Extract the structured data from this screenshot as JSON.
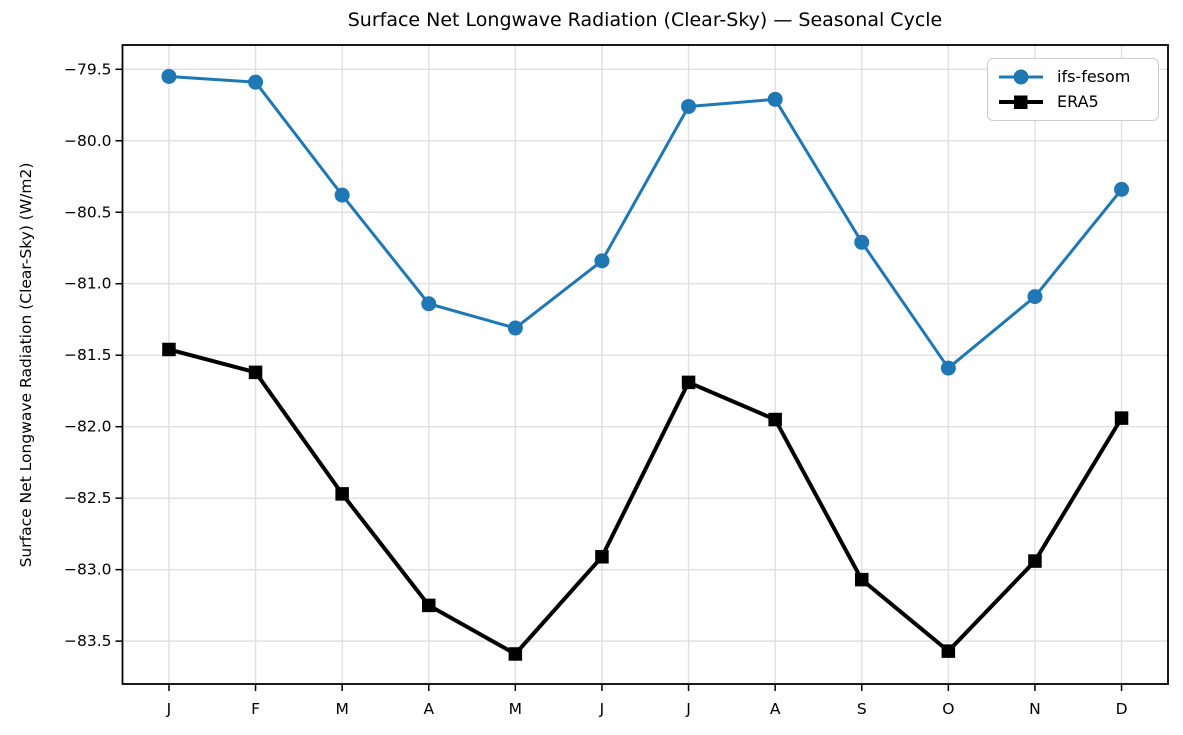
{
  "chart_data": {
    "type": "line",
    "title": "Surface Net Longwave Radiation (Clear-Sky) — Seasonal Cycle",
    "xlabel": "",
    "ylabel": "Surface Net Longwave Radiation (Clear-Sky) (W/m2)",
    "categories": [
      "J",
      "F",
      "M",
      "A",
      "M",
      "J",
      "J",
      "A",
      "S",
      "O",
      "N",
      "D"
    ],
    "series": [
      {
        "name": "ifs-fesom",
        "color": "#1f77b4",
        "marker": "circle",
        "linewidth": 3,
        "values": [
          -79.55,
          -79.59,
          -80.38,
          -81.14,
          -81.31,
          -80.84,
          -79.76,
          -79.71,
          -80.71,
          -81.59,
          -81.09,
          -80.34
        ]
      },
      {
        "name": "ERA5",
        "color": "#000000",
        "marker": "square",
        "linewidth": 4,
        "values": [
          -81.46,
          -81.62,
          -82.47,
          -83.25,
          -83.59,
          -82.91,
          -81.69,
          -81.95,
          -83.07,
          -83.57,
          -82.94,
          -81.94
        ]
      }
    ],
    "ylim": [
      -83.8,
      -79.33
    ],
    "yticks": [
      -79.5,
      -80.0,
      -80.5,
      -81.0,
      -81.5,
      -82.0,
      -82.5,
      -83.0,
      -83.5
    ],
    "ytick_labels": [
      "−79.5",
      "−80.0",
      "−80.5",
      "−81.0",
      "−81.5",
      "−82.0",
      "−82.5",
      "−83.0",
      "−83.5"
    ],
    "grid": true,
    "legend_position": "upper right"
  },
  "colors": {
    "accent_blue": "#1f77b4",
    "series_black": "#000000",
    "grid": "#e0e0e0",
    "spine": "#000000",
    "tick_label": "#000000",
    "legend_border": "#cccccc",
    "background": "#ffffff"
  }
}
